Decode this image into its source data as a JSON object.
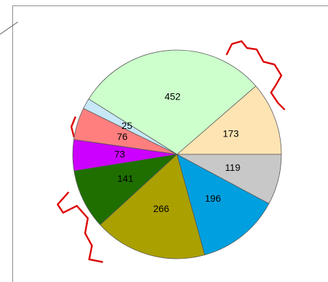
{
  "chart_data": {
    "type": "pie",
    "values": [
      173,
      452,
      25,
      76,
      73,
      141,
      266,
      196,
      119
    ],
    "colors": [
      "#ffe4b3",
      "#ccffcc",
      "#c6e8f7",
      "#ff7f7f",
      "#cc00ff",
      "#1f6f00",
      "#aaa000",
      "#00a0e0",
      "#c8c8c8"
    ]
  }
}
